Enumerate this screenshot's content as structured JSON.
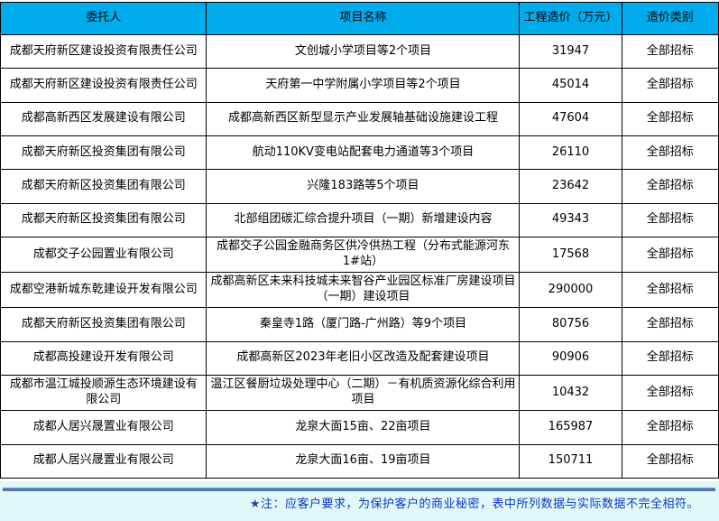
{
  "colors": {
    "header_bg": "#00ACEC",
    "footer_bg": "#E2F8F8",
    "note_text": "#0936CC",
    "note_star": "#26459E",
    "border": "#000000"
  },
  "table": {
    "headers": [
      "委托人",
      "项目名称",
      "工程造价（万元）",
      "造价类别"
    ],
    "rows": [
      {
        "client": "成都天府新区建设投资有限责任公司",
        "project": "文创城小学项目等2个项目",
        "cost": "31947",
        "category": "全部招标"
      },
      {
        "client": "成都天府新区建设投资有限责任公司",
        "project": "天府第一中学附属小学项目等2个项目",
        "cost": "45014",
        "category": "全部招标"
      },
      {
        "client": "成都高新西区发展建设有限公司",
        "project": "成都高新西区新型显示产业发展轴基础设施建设工程",
        "cost": "47604",
        "category": "全部招标"
      },
      {
        "client": "成都天府新区投资集团有限公司",
        "project": "航动110KV变电站配套电力通道等3个项目",
        "cost": "26110",
        "category": "全部招标"
      },
      {
        "client": "成都天府新区投资集团有限公司",
        "project": "兴隆183路等5个项目",
        "cost": "23642",
        "category": "全部招标"
      },
      {
        "client": "成都天府新区投资集团有限公司",
        "project": "北部组团碳汇综合提升项目（一期）新增建设内容",
        "cost": "49343",
        "category": "全部招标"
      },
      {
        "client": "成都交子公园置业有限公司",
        "project": "成都交子公园金融商务区供冷供热工程（分布式能源河东1#站）",
        "cost": "17568",
        "category": "全部招标"
      },
      {
        "client": "成都空港新城东乾建设开发有限公司",
        "project": "成都高新区未来科技城未来智谷产业园区标准厂房建设项目（一期）建设项目",
        "cost": "290000",
        "category": "全部招标"
      },
      {
        "client": "成都天府新区投资集团有限公司",
        "project": "秦皇寺1路（厦门路-广州路）等9个项目",
        "cost": "80756",
        "category": "全部招标"
      },
      {
        "client": "成都高投建设开发有限公司",
        "project": "成都高新区2023年老旧小区改造及配套建设项目",
        "cost": "90906",
        "category": "全部招标"
      },
      {
        "client": "成都市温江城投顺源生态环境建设有限公司",
        "project": "温江区餐厨垃圾处理中心（二期）－有机质资源化综合利用项目",
        "cost": "10432",
        "category": "全部招标"
      },
      {
        "client": "成都人居兴晟置业有限公司",
        "project": "龙泉大面15亩、22亩项目",
        "cost": "165987",
        "category": "全部招标"
      },
      {
        "client": "成都人居兴晟置业有限公司",
        "project": "龙泉大面16亩、19亩项目",
        "cost": "150711",
        "category": "全部招标"
      }
    ]
  },
  "footer": {
    "star": "★",
    "note": "注：应客户要求，为保护客户的商业秘密，表中所列数据与实际数据不完全相符。"
  }
}
